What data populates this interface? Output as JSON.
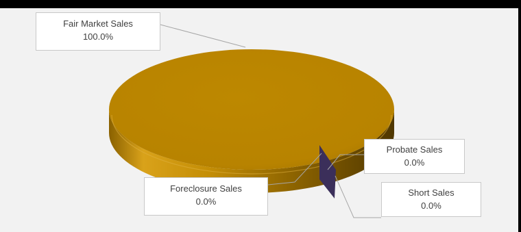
{
  "chart_data": {
    "type": "pie",
    "style": "3d",
    "slices": [
      {
        "label": "Fair Market Sales",
        "value": 100.0,
        "value_label": "100.0%",
        "color": "#b88400"
      },
      {
        "label": "Foreclosure Sales",
        "value": 0.0,
        "value_label": "0.0%",
        "color": "#3b2f5a"
      },
      {
        "label": "Probate Sales",
        "value": 0.0,
        "value_label": "0.0%",
        "color": "#3b2f5a"
      },
      {
        "label": "Short Sales",
        "value": 0.0,
        "value_label": "0.0%",
        "color": "#3b2f5a"
      }
    ]
  }
}
